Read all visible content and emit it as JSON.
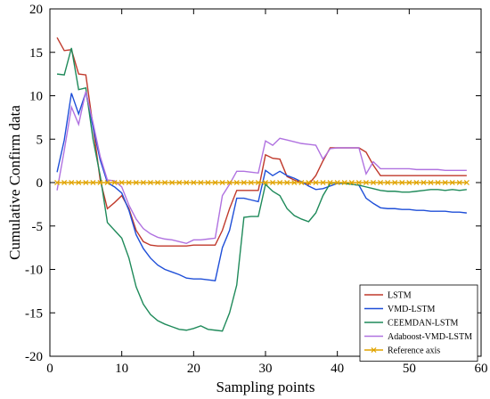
{
  "chart_data": {
    "type": "line",
    "xlabel": "Sampling points",
    "ylabel": "Cumulative Confirm data",
    "xlim": [
      0,
      60
    ],
    "ylim": [
      -20,
      20
    ],
    "xticks": [
      0,
      10,
      20,
      30,
      40,
      50,
      60
    ],
    "yticks": [
      -20,
      -15,
      -10,
      -5,
      0,
      5,
      10,
      15,
      20
    ],
    "grid": false,
    "legend_position": "bottom-right",
    "x": [
      1,
      2,
      3,
      4,
      5,
      6,
      7,
      8,
      9,
      10,
      11,
      12,
      13,
      14,
      15,
      16,
      17,
      18,
      19,
      20,
      21,
      22,
      23,
      24,
      25,
      26,
      27,
      28,
      29,
      30,
      31,
      32,
      33,
      34,
      35,
      36,
      37,
      38,
      39,
      40,
      41,
      42,
      43,
      44,
      45,
      46,
      47,
      48,
      49,
      50,
      51,
      52,
      53,
      54,
      55,
      56,
      57,
      58
    ],
    "series": [
      {
        "name": "LSTM",
        "color": "#c0392b",
        "marker": "none",
        "values": [
          16.7,
          15.2,
          15.3,
          12.5,
          12.4,
          6.5,
          0.3,
          -3.0,
          -2.3,
          -1.5,
          -3.0,
          -5.5,
          -6.8,
          -7.2,
          -7.3,
          -7.3,
          -7.3,
          -7.3,
          -7.3,
          -7.2,
          -7.2,
          -7.2,
          -7.2,
          -5.5,
          -3.0,
          -0.9,
          -0.9,
          -0.9,
          -0.9,
          3.2,
          2.8,
          2.7,
          0.7,
          0.3,
          0.0,
          -0.2,
          0.8,
          2.5,
          4.0,
          4.0,
          4.0,
          4.0,
          4.0,
          3.5,
          2.0,
          0.8,
          0.8,
          0.8,
          0.8,
          0.8,
          0.8,
          0.8,
          0.8,
          0.8,
          0.8,
          0.8,
          0.8,
          0.8
        ]
      },
      {
        "name": "VMD-LSTM",
        "color": "#1f4fd8",
        "marker": "none",
        "values": [
          1.2,
          4.9,
          10.3,
          7.9,
          10.4,
          6.4,
          2.6,
          0.0,
          -0.5,
          -1.2,
          -3.2,
          -6.0,
          -7.6,
          -8.7,
          -9.5,
          -10.0,
          -10.3,
          -10.6,
          -11.0,
          -11.1,
          -11.1,
          -11.2,
          -11.3,
          -7.5,
          -5.5,
          -1.8,
          -1.8,
          -2.0,
          -2.2,
          1.4,
          0.8,
          1.3,
          0.8,
          0.5,
          0.1,
          -0.4,
          -0.8,
          -0.7,
          -0.4,
          -0.1,
          -0.1,
          -0.2,
          -0.3,
          -1.8,
          -2.4,
          -2.9,
          -3.0,
          -3.0,
          -3.1,
          -3.1,
          -3.2,
          -3.2,
          -3.3,
          -3.3,
          -3.3,
          -3.4,
          -3.4,
          -3.5
        ]
      },
      {
        "name": "CEEMDAN-LSTM",
        "color": "#1f8a5a",
        "marker": "none",
        "values": [
          12.5,
          12.4,
          15.5,
          10.7,
          10.9,
          5.0,
          0.8,
          -4.6,
          -5.5,
          -6.4,
          -8.7,
          -12.0,
          -14.0,
          -15.2,
          -15.9,
          -16.3,
          -16.6,
          -16.9,
          -17.0,
          -16.8,
          -16.5,
          -16.9,
          -17.0,
          -17.1,
          -15.0,
          -11.8,
          -4.0,
          -3.9,
          -3.9,
          -0.2,
          -1.0,
          -1.5,
          -3.0,
          -3.8,
          -4.2,
          -4.5,
          -3.5,
          -1.5,
          -0.1,
          0.0,
          -0.1,
          -0.2,
          -0.3,
          -0.5,
          -0.7,
          -0.9,
          -1.0,
          -1.0,
          -1.1,
          -1.1,
          -1.0,
          -0.9,
          -0.8,
          -0.8,
          -0.9,
          -0.8,
          -0.9,
          -0.8
        ]
      },
      {
        "name": "Adaboost-VMD-LSTM",
        "color": "#b072e0",
        "marker": "none",
        "values": [
          -0.9,
          3.7,
          8.7,
          6.7,
          10.5,
          6.9,
          3.0,
          0.3,
          0.2,
          -0.5,
          -2.6,
          -4.2,
          -5.3,
          -5.9,
          -6.3,
          -6.5,
          -6.6,
          -6.8,
          -7.0,
          -6.6,
          -6.6,
          -6.5,
          -6.4,
          -1.5,
          -0.2,
          1.3,
          1.3,
          1.2,
          1.1,
          4.8,
          4.3,
          5.1,
          4.9,
          4.7,
          4.5,
          4.4,
          4.3,
          2.7,
          3.9,
          4.0,
          4.0,
          4.0,
          4.0,
          1.0,
          2.4,
          1.6,
          1.6,
          1.6,
          1.6,
          1.6,
          1.5,
          1.5,
          1.5,
          1.5,
          1.4,
          1.4,
          1.4,
          1.4
        ]
      },
      {
        "name": "Reference axis",
        "color": "#e1a400",
        "marker": "x",
        "values": [
          0,
          0,
          0,
          0,
          0,
          0,
          0,
          0,
          0,
          0,
          0,
          0,
          0,
          0,
          0,
          0,
          0,
          0,
          0,
          0,
          0,
          0,
          0,
          0,
          0,
          0,
          0,
          0,
          0,
          0,
          0,
          0,
          0,
          0,
          0,
          0,
          0,
          0,
          0,
          0,
          0,
          0,
          0,
          0,
          0,
          0,
          0,
          0,
          0,
          0,
          0,
          0,
          0,
          0,
          0,
          0,
          0,
          0
        ]
      }
    ]
  }
}
